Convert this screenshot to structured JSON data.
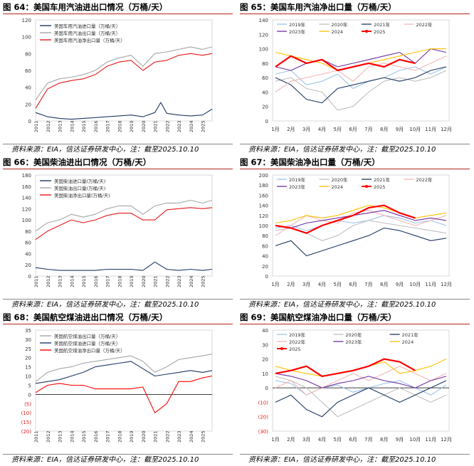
{
  "captions": {
    "source": "资料来源：EIA，信达证券研发中心，注：截至2025.10.10"
  },
  "chart_data": [
    {
      "id": "fig64",
      "kind": "history",
      "title": "图 64：美国车用汽油进出口情况（万桶/天）",
      "type": "line",
      "ylim": [
        0,
        120
      ],
      "yticks": [
        0,
        20,
        40,
        60,
        80,
        100,
        120
      ],
      "xticks": [
        "2011",
        "2012",
        "2013",
        "2014",
        "2015",
        "2016",
        "2017",
        "2018",
        "2019",
        "2020",
        "2021",
        "2022",
        "2023",
        "2024",
        "2025"
      ],
      "x_range": [
        2011,
        2025.8
      ],
      "series": [
        {
          "name": "美国车用汽油进口量（万桶/天）",
          "color": "#1f3864",
          "x": [
            2011,
            2012,
            2013,
            2014,
            2015,
            2016,
            2017,
            2018,
            2019,
            2020,
            2021,
            2021.5,
            2022,
            2023,
            2024,
            2025,
            2025.8
          ],
          "y": [
            10,
            5,
            3,
            2,
            3,
            4,
            5,
            6,
            7,
            5,
            10,
            22,
            9,
            7,
            6,
            7,
            14
          ]
        },
        {
          "name": "美国车用汽油出口量（万桶/天）",
          "color": "#a6a6a6",
          "x": [
            2011,
            2012,
            2013,
            2014,
            2015,
            2016,
            2017,
            2018,
            2019,
            2020,
            2021,
            2022,
            2023,
            2024,
            2025,
            2025.8
          ],
          "y": [
            25,
            45,
            50,
            52,
            55,
            60,
            70,
            75,
            78,
            65,
            80,
            82,
            85,
            88,
            85,
            88
          ]
        },
        {
          "name": "美国车用汽油净出口量（万桶/天）",
          "color": "#e31a1c",
          "x": [
            2011,
            2012,
            2013,
            2014,
            2015,
            2016,
            2017,
            2018,
            2019,
            2020,
            2021,
            2022,
            2023,
            2024,
            2025,
            2025.8
          ],
          "y": [
            15,
            38,
            45,
            48,
            50,
            55,
            65,
            70,
            72,
            60,
            70,
            72,
            78,
            80,
            78,
            80
          ]
        }
      ]
    },
    {
      "id": "fig65",
      "kind": "seasonal",
      "title": "图 65：美国车用汽油净出口量（万桶/天）",
      "type": "line",
      "ylim": [
        0,
        140
      ],
      "yticks": [
        0,
        20,
        40,
        60,
        80,
        100,
        120,
        140
      ],
      "xticks": [
        "1月",
        "2月",
        "3月",
        "4月",
        "5月",
        "6月",
        "7月",
        "8月",
        "9月",
        "10月",
        "11月",
        "12月"
      ],
      "legend_cols": 4,
      "series": [
        {
          "name": "2019年",
          "color": "#9dc3e6",
          "y": [
            65,
            70,
            50,
            55,
            65,
            45,
            55,
            60,
            70,
            75,
            65,
            75
          ]
        },
        {
          "name": "2020年",
          "color": "#bfbfbf",
          "y": [
            55,
            60,
            45,
            40,
            15,
            20,
            40,
            55,
            60,
            55,
            60,
            70
          ]
        },
        {
          "name": "2021年",
          "color": "#1f3864",
          "y": [
            60,
            50,
            30,
            25,
            45,
            50,
            55,
            60,
            55,
            60,
            70,
            75
          ]
        },
        {
          "name": "2022年",
          "color": "#f4b6b6",
          "y": [
            40,
            55,
            60,
            65,
            70,
            55,
            75,
            80,
            75,
            70,
            80,
            90
          ]
        },
        {
          "name": "2023年",
          "color": "#7030a0",
          "y": [
            75,
            70,
            80,
            85,
            75,
            80,
            85,
            90,
            95,
            80,
            100,
            95
          ]
        },
        {
          "name": "2024",
          "color": "#ffc000",
          "y": [
            95,
            90,
            85,
            80,
            70,
            75,
            80,
            85,
            90,
            95,
            100,
            100
          ]
        },
        {
          "name": "2025",
          "color": "#ff0000",
          "y": [
            75,
            90,
            80,
            85,
            70,
            75,
            80,
            75,
            85,
            80
          ]
        }
      ]
    },
    {
      "id": "fig66",
      "kind": "history",
      "title": "图 66：美国柴油进出口情况（万桶/天）",
      "type": "line",
      "ylim": [
        0,
        180
      ],
      "yticks": [
        0,
        20,
        40,
        60,
        80,
        100,
        120,
        140,
        160,
        180
      ],
      "xticks": [
        "2011",
        "2012",
        "2013",
        "2014",
        "2015",
        "2016",
        "2017",
        "2018",
        "2019",
        "2020",
        "2021",
        "2022",
        "2023",
        "2024",
        "2025"
      ],
      "x_range": [
        2011,
        2025.8
      ],
      "series": [
        {
          "name": "美国柴油进口量(万桶/天)",
          "color": "#1f3864",
          "x": [
            2011,
            2012,
            2013,
            2014,
            2015,
            2016,
            2017,
            2018,
            2019,
            2020,
            2021,
            2022,
            2023,
            2024,
            2025,
            2025.8
          ],
          "y": [
            15,
            12,
            10,
            10,
            10,
            10,
            12,
            12,
            12,
            10,
            25,
            12,
            10,
            12,
            10,
            12
          ]
        },
        {
          "name": "美国柴油出口量(万桶/天)",
          "color": "#a6a6a6",
          "x": [
            2011,
            2012,
            2013,
            2014,
            2015,
            2016,
            2017,
            2018,
            2019,
            2020,
            2021,
            2022,
            2023,
            2024,
            2025,
            2025.8
          ],
          "y": [
            80,
            95,
            100,
            110,
            105,
            110,
            120,
            125,
            125,
            110,
            125,
            130,
            130,
            135,
            130,
            135
          ]
        },
        {
          "name": "美国柴油净出口量(万桶/天)",
          "color": "#e31a1c",
          "x": [
            2011,
            2012,
            2013,
            2014,
            2015,
            2016,
            2017,
            2018,
            2019,
            2020,
            2021,
            2022,
            2023,
            2024,
            2025,
            2025.8
          ],
          "y": [
            65,
            80,
            90,
            100,
            95,
            100,
            108,
            112,
            112,
            100,
            100,
            118,
            120,
            122,
            120,
            122
          ]
        }
      ]
    },
    {
      "id": "fig67",
      "kind": "seasonal",
      "title": "图 67：美国柴油净出口量（万桶/天）",
      "type": "line",
      "ylim": [
        0,
        200
      ],
      "yticks": [
        0,
        20,
        40,
        60,
        80,
        100,
        120,
        140,
        160,
        180,
        200
      ],
      "xticks": [
        "1月",
        "2月",
        "3月",
        "4月",
        "5月",
        "6月",
        "7月",
        "8月",
        "9月",
        "10月",
        "11月",
        "12月"
      ],
      "legend_cols": 4,
      "series": [
        {
          "name": "2019年",
          "color": "#9dc3e6",
          "y": [
            95,
            100,
            90,
            100,
            110,
            105,
            110,
            120,
            115,
            105,
            110,
            100
          ]
        },
        {
          "name": "2020年",
          "color": "#bfbfbf",
          "y": [
            90,
            95,
            85,
            70,
            80,
            100,
            110,
            105,
            100,
            95,
            90,
            85
          ]
        },
        {
          "name": "2021年",
          "color": "#1f3864",
          "y": [
            60,
            70,
            40,
            50,
            60,
            70,
            80,
            95,
            90,
            80,
            70,
            75
          ]
        },
        {
          "name": "2022年",
          "color": "#f4b6b6",
          "y": [
            80,
            100,
            120,
            110,
            105,
            125,
            130,
            120,
            110,
            100,
            110,
            120
          ]
        },
        {
          "name": "2023年",
          "color": "#7030a0",
          "y": [
            100,
            95,
            105,
            110,
            115,
            120,
            125,
            130,
            120,
            110,
            115,
            110
          ]
        },
        {
          "name": "2024",
          "color": "#ffc000",
          "y": [
            105,
            110,
            120,
            115,
            120,
            130,
            140,
            135,
            125,
            115,
            120,
            125
          ]
        },
        {
          "name": "2025",
          "color": "#ff0000",
          "y": [
            100,
            95,
            85,
            100,
            110,
            120,
            135,
            140,
            125,
            115
          ]
        }
      ]
    },
    {
      "id": "fig68",
      "kind": "history",
      "title": "图 68：美国航空煤油进出口情况（万桶/天）",
      "type": "line",
      "ylim": [
        -20,
        35
      ],
      "yticks": [
        -20,
        -15,
        -10,
        -5,
        0,
        5,
        10,
        15,
        20,
        25,
        30,
        35
      ],
      "xticks": [
        "2011",
        "2012",
        "2013",
        "2014",
        "2015",
        "2016",
        "2017",
        "2018",
        "2019",
        "2020",
        "2021",
        "2022",
        "2023",
        "2024",
        "2025"
      ],
      "x_range": [
        2011,
        2025.8
      ],
      "series": [
        {
          "name": "美国航空煤油出口量（万桶/天）",
          "color": "#a6a6a6",
          "x": [
            2011,
            2012,
            2013,
            2014,
            2015,
            2016,
            2017,
            2018,
            2019,
            2020,
            2021,
            2022,
            2023,
            2024,
            2025,
            2025.8
          ],
          "y": [
            7,
            12,
            14,
            15,
            17,
            18,
            19,
            20,
            21,
            18,
            12,
            15,
            19,
            20,
            21,
            22
          ]
        },
        {
          "name": "美国航空煤油进口量（万桶/天）",
          "color": "#1f3864",
          "x": [
            2011,
            2012,
            2013,
            2014,
            2015,
            2016,
            2017,
            2018,
            2019,
            2020,
            2021,
            2022,
            2023,
            2024,
            2025,
            2025.8
          ],
          "y": [
            6,
            7,
            8,
            10,
            12,
            15,
            16,
            17,
            18,
            14,
            10,
            11,
            12,
            13,
            12,
            13
          ]
        },
        {
          "name": "美国航空煤油净出口量（万桶/天）",
          "color": "#ff0000",
          "x": [
            2011,
            2012,
            2013,
            2014,
            2015,
            2016,
            2017,
            2018,
            2019,
            2020,
            2021,
            2022,
            2023,
            2024,
            2025,
            2025.8
          ],
          "y": [
            1,
            5,
            6,
            5,
            5,
            3,
            3,
            3,
            3,
            4,
            -10,
            -5,
            7,
            7,
            9,
            10
          ]
        }
      ]
    },
    {
      "id": "fig69",
      "kind": "seasonal",
      "title": "图 69：美国航空煤油净出口量（万桶/天）",
      "type": "line",
      "ylim": [
        -30,
        40
      ],
      "yticks": [
        -30,
        -20,
        -10,
        0,
        10,
        20,
        30,
        40
      ],
      "xticks": [
        "1月",
        "2月",
        "3月",
        "4月",
        "5月",
        "6月",
        "7月",
        "8月",
        "9月",
        "10月",
        "11月",
        "12月"
      ],
      "legend_cols": 3,
      "series": [
        {
          "name": "2019年",
          "color": "#9dc3e6",
          "y": [
            5,
            3,
            -5,
            0,
            2,
            -3,
            0,
            3,
            5,
            0,
            -5,
            2
          ]
        },
        {
          "name": "2020年",
          "color": "#bfbfbf",
          "y": [
            8,
            5,
            0,
            -10,
            -20,
            -15,
            -10,
            -5,
            0,
            -5,
            -10,
            -5
          ]
        },
        {
          "name": "2021年",
          "color": "#1f3864",
          "y": [
            -10,
            -5,
            -15,
            -20,
            -10,
            -5,
            0,
            -5,
            -10,
            -5,
            0,
            5
          ]
        },
        {
          "name": "2022年",
          "color": "#f4b6b6",
          "y": [
            0,
            5,
            -5,
            0,
            5,
            10,
            5,
            10,
            15,
            10,
            5,
            10
          ]
        },
        {
          "name": "2023年",
          "color": "#7030a0",
          "y": [
            10,
            8,
            5,
            0,
            3,
            5,
            8,
            5,
            3,
            0,
            5,
            8
          ]
        },
        {
          "name": "2024",
          "color": "#ffc000",
          "y": [
            15,
            12,
            10,
            8,
            10,
            12,
            15,
            18,
            10,
            12,
            15,
            20
          ]
        },
        {
          "name": "2025",
          "color": "#ff0000",
          "y": [
            10,
            12,
            15,
            8,
            10,
            12,
            15,
            20,
            18,
            12
          ]
        }
      ]
    }
  ]
}
